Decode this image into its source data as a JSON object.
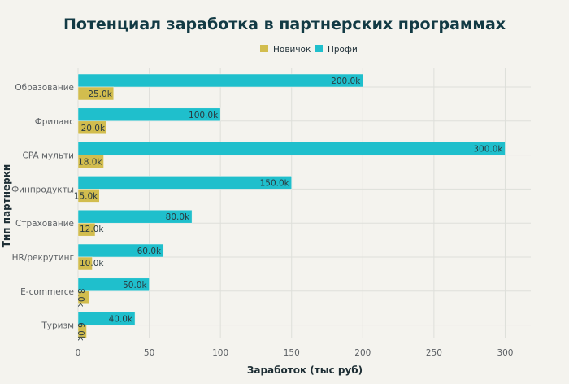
{
  "chart_data": {
    "type": "bar",
    "orientation": "horizontal",
    "title": "Потенциал заработка в партнерских программах",
    "xlabel": "Заработок (тыс руб)",
    "ylabel": "Тип партнерки",
    "xlim": [
      0,
      318
    ],
    "xticks": [
      "0",
      "50",
      "100",
      "150",
      "200",
      "250",
      "300"
    ],
    "grid": true,
    "legend_position": "top-center",
    "categories": [
      "Образование",
      "Фриланс",
      "CPA мульти",
      "Финпродукты",
      "Страхование",
      "HR/рекрутинг",
      "E-commerce",
      "Туризм"
    ],
    "series": [
      {
        "name": "Новичок",
        "color": "#d2bd4e",
        "values": [
          25,
          20,
          18,
          15,
          12,
          10,
          8,
          6
        ],
        "labels": [
          "25.0k",
          "20.0k",
          "18.0k",
          "15.0k",
          "12.0k",
          "10.0k",
          "8.0k",
          "6.0k"
        ]
      },
      {
        "name": "Профи",
        "color": "#1fbfcc",
        "values": [
          200,
          100,
          300,
          150,
          80,
          60,
          50,
          40
        ],
        "labels": [
          "200.0k",
          "100.0k",
          "300.0k",
          "150.0k",
          "80.0k",
          "60.0k",
          "50.0k",
          "40.0k"
        ]
      }
    ]
  }
}
